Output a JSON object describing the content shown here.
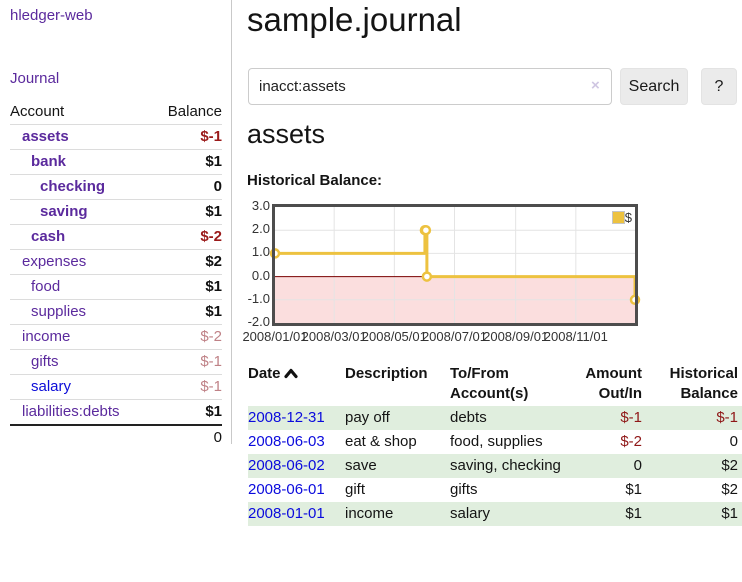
{
  "app": {
    "title": "hledger-web"
  },
  "sidebar": {
    "journal_label": "Journal",
    "accounts": {
      "col_account": "Account",
      "col_balance": "Balance",
      "rows": [
        {
          "account": "assets",
          "balance": "$-1"
        },
        {
          "account": "bank",
          "balance": "$1"
        },
        {
          "account": "checking",
          "balance": "0"
        },
        {
          "account": "saving",
          "balance": "$1"
        },
        {
          "account": "cash",
          "balance": "$-2"
        },
        {
          "account": "expenses",
          "balance": "$2"
        },
        {
          "account": "food",
          "balance": "$1"
        },
        {
          "account": "supplies",
          "balance": "$1"
        },
        {
          "account": "income",
          "balance": "$-2"
        },
        {
          "account": "gifts",
          "balance": "$-1"
        },
        {
          "account": "salary",
          "balance": "$-1"
        },
        {
          "account": "liabilities:debts",
          "balance": "$1"
        }
      ],
      "total": "0"
    }
  },
  "main": {
    "title": "sample.journal",
    "search": {
      "value": "inacct:assets",
      "clear_icon": "×",
      "button_label": "Search",
      "help_label": "?"
    },
    "account_heading": "assets"
  },
  "chart_data": {
    "type": "line",
    "step": true,
    "title": "Historical Balance:",
    "legend": "$",
    "line_color": "#edc240",
    "zero_line_color": "#7a0000",
    "negative_region_fill": "#fbdede",
    "grid_color": "#e4e4e4",
    "xlim": [
      "2008-01-01",
      "2008-12-31"
    ],
    "ylim": [
      -2,
      3
    ],
    "x_ticks": [
      "2008/01/01",
      "2008/03/01",
      "2008/05/01",
      "2008/07/01",
      "2008/09/01",
      "2008/11/01"
    ],
    "y_ticks": [
      3.0,
      2.0,
      1.0,
      0.0,
      -1.0,
      -2.0
    ],
    "series": [
      {
        "name": "$",
        "points": [
          [
            "2008-01-01",
            1
          ],
          [
            "2008-06-01",
            2
          ],
          [
            "2008-06-02",
            2
          ],
          [
            "2008-06-03",
            0
          ],
          [
            "2008-12-31",
            -1
          ]
        ]
      }
    ]
  },
  "register": {
    "col_date": "Date",
    "sort_icon": "chevron-up",
    "col_description": "Description",
    "col_accounts": "To/From Account(s)",
    "col_amount": "Amount Out/In",
    "col_balance": "Historical Balance",
    "rows": [
      {
        "date": "2008-12-31",
        "description": "pay off",
        "accounts": "debts",
        "amount": "$-1",
        "balance": "$-1"
      },
      {
        "date": "2008-06-03",
        "description": "eat & shop",
        "accounts": "food, supplies",
        "amount": "$-2",
        "balance": "0"
      },
      {
        "date": "2008-06-02",
        "description": "save",
        "accounts": "saving, checking",
        "amount": "0",
        "balance": "$2"
      },
      {
        "date": "2008-06-01",
        "description": "gift",
        "accounts": "gifts",
        "amount": "$1",
        "balance": "$2"
      },
      {
        "date": "2008-01-01",
        "description": "income",
        "accounts": "salary",
        "amount": "$1",
        "balance": "$1"
      }
    ]
  }
}
